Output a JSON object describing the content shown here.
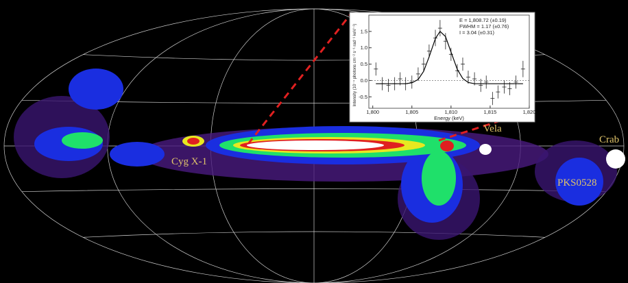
{
  "sources": [
    "Cyg X-1",
    "Vela",
    "Crab",
    "PKS0528"
  ],
  "inset": {
    "annotations": [
      "E = 1,808.72 (±0.19)",
      "FWHM = 1.17 (±0.76)",
      "I = 3.04 (±0.31)"
    ],
    "xlabel": "Energy (keV)",
    "ylabel": "Intensity (10⁻⁴ photons cm⁻² s⁻¹ rad⁻¹ keV⁻¹)",
    "xlim": [
      1799.5,
      1820
    ],
    "ylim": [
      -0.85,
      2.0
    ],
    "xticks": [
      {
        "value": 1800,
        "label": "1,800"
      },
      {
        "value": 1805,
        "label": "1,805"
      },
      {
        "value": 1810,
        "label": "1,810"
      },
      {
        "value": 1815,
        "label": "1,815"
      },
      {
        "value": 1820,
        "label": "1,820"
      }
    ],
    "yticks": [
      {
        "value": -0.5,
        "label": "-0.5"
      },
      {
        "value": 0,
        "label": "0.0"
      },
      {
        "value": 0.5,
        "label": "0.5"
      },
      {
        "value": 1,
        "label": "1.0"
      },
      {
        "value": 1.5,
        "label": "1.5"
      }
    ],
    "x": [
      1800.4,
      1801.2,
      1802,
      1802.8,
      1803.5,
      1804.2,
      1805,
      1805.8,
      1806.5,
      1807.2,
      1808,
      1808.6,
      1809.3,
      1810,
      1810.8,
      1811.5,
      1812.2,
      1813,
      1813.8,
      1814.5,
      1815.3,
      1816,
      1816.8,
      1817.5,
      1818.3,
      1819.2
    ],
    "y": [
      0.35,
      -0.1,
      -0.15,
      -0.1,
      0.05,
      -0.1,
      -0.05,
      0.2,
      0.5,
      0.9,
      1.3,
      1.6,
      1.2,
      0.8,
      0.3,
      0.5,
      0.1,
      0.05,
      -0.15,
      -0.05,
      -0.55,
      -0.35,
      -0.2,
      -0.25,
      -0.05,
      0.35
    ],
    "err": [
      0.2,
      0.2,
      0.2,
      0.2,
      0.2,
      0.2,
      0.2,
      0.2,
      0.2,
      0.2,
      0.25,
      0.25,
      0.25,
      0.2,
      0.2,
      0.2,
      0.2,
      0.2,
      0.2,
      0.2,
      0.2,
      0.2,
      0.2,
      0.2,
      0.2,
      0.25
    ],
    "fit": [
      -0.1,
      -0.1,
      -0.1,
      -0.1,
      -0.1,
      -0.1,
      -0.07,
      0.03,
      0.28,
      0.72,
      1.28,
      1.5,
      1.34,
      0.87,
      0.34,
      0.06,
      -0.06,
      -0.1,
      -0.1,
      -0.1,
      -0.1,
      -0.1,
      -0.1,
      -0.1,
      -0.1,
      -0.1
    ]
  }
}
